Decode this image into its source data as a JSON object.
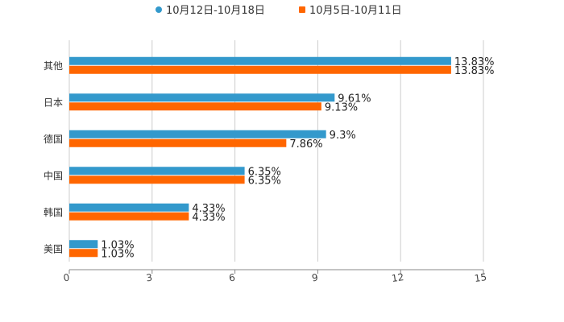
{
  "chart_data": {
    "type": "bar",
    "orientation": "horizontal",
    "title": "",
    "xlabel": "",
    "ylabel": "",
    "categories": [
      "其他",
      "日本",
      "德国",
      "中国",
      "韩国",
      "美国"
    ],
    "series": [
      {
        "name": "10月12日-10月18日",
        "color": "#3399cc",
        "values": [
          13.83,
          9.61,
          9.3,
          6.35,
          4.33,
          1.03
        ],
        "labels": [
          "13.83%",
          "9.61%",
          "9.3%",
          "6.35%",
          "4.33%",
          "1.03%"
        ]
      },
      {
        "name": "10月5日-10月11日",
        "color": "#ff6600",
        "values": [
          13.83,
          9.13,
          7.86,
          6.35,
          4.33,
          1.03
        ],
        "labels": [
          "13.83%",
          "9.13%",
          "7.86%",
          "6.35%",
          "4.33%",
          "1.03%"
        ]
      }
    ],
    "xlim": [
      0,
      15
    ],
    "xticks": [
      "0",
      "3",
      "6",
      "9",
      "12",
      "15"
    ],
    "grid": true,
    "legend_position": "top-center"
  }
}
